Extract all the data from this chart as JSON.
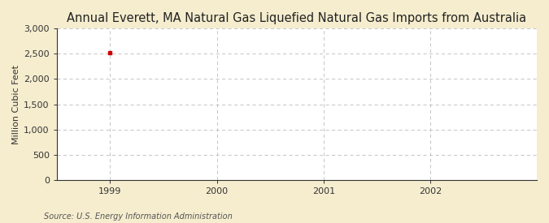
{
  "title": "Annual Everett, MA Natural Gas Liquefied Natural Gas Imports from Australia",
  "ylabel": "Million Cubic Feet",
  "source": "Source: U.S. Energy Information Administration",
  "fig_bg_color": "#f5edce",
  "plot_bg_color": "#ffffff",
  "data_x": [
    1999
  ],
  "data_y": [
    2530
  ],
  "data_color": "#cc0000",
  "xlim": [
    1998.5,
    2003.0
  ],
  "ylim": [
    0,
    3000
  ],
  "yticks": [
    0,
    500,
    1000,
    1500,
    2000,
    2500,
    3000
  ],
  "xticks": [
    1999,
    2000,
    2001,
    2002
  ],
  "title_fontsize": 10.5,
  "label_fontsize": 8,
  "tick_fontsize": 8,
  "source_fontsize": 7,
  "grid_color": "#bbbbbb",
  "spine_color": "#333333"
}
